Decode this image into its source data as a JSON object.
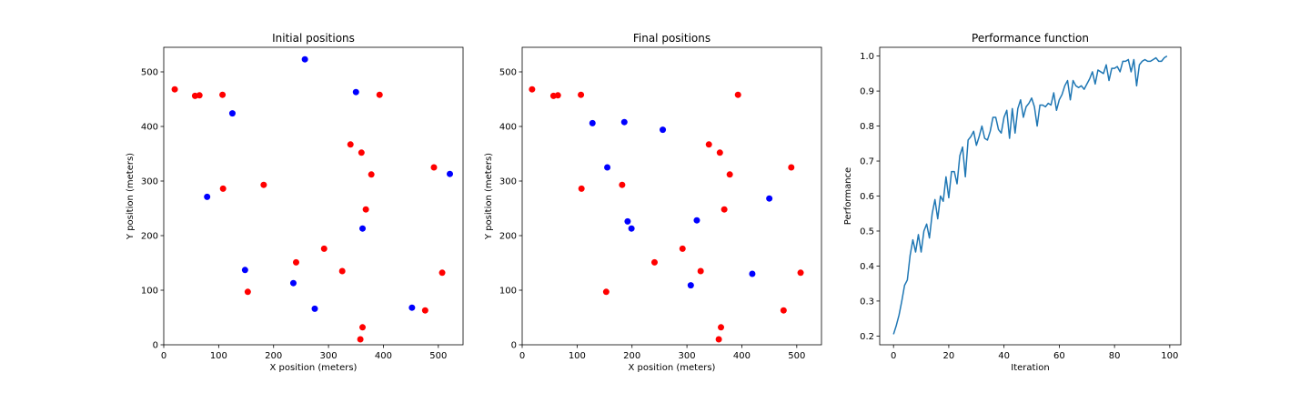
{
  "chart_data": [
    {
      "type": "scatter",
      "title": "Initial positions",
      "xlabel": "X position (meters)",
      "ylabel": "Y position (meters)",
      "xlim": [
        0,
        545
      ],
      "ylim": [
        0,
        545
      ],
      "xticks": [
        0,
        100,
        200,
        300,
        400,
        500
      ],
      "yticks": [
        0,
        100,
        200,
        300,
        400,
        500
      ],
      "grid": false,
      "series": [
        {
          "color": "#ff0000",
          "points": [
            [
              20,
              468
            ],
            [
              57,
              456
            ],
            [
              65,
              457
            ],
            [
              107,
              458
            ],
            [
              108,
              286
            ],
            [
              182,
              293
            ],
            [
              153,
              97
            ],
            [
              241,
              151
            ],
            [
              292,
              176
            ],
            [
              325,
              135
            ],
            [
              340,
              367
            ],
            [
              360,
              352
            ],
            [
              368,
              248
            ],
            [
              378,
              312
            ],
            [
              393,
              458
            ],
            [
              492,
              325
            ],
            [
              507,
              132
            ],
            [
              476,
              63
            ],
            [
              362,
              32
            ],
            [
              358,
              10
            ]
          ]
        },
        {
          "color": "#0000ff",
          "points": [
            [
              257,
              523
            ],
            [
              350,
              463
            ],
            [
              125,
              424
            ],
            [
              79,
              271
            ],
            [
              148,
              137
            ],
            [
              236,
              113
            ],
            [
              275,
              66
            ],
            [
              362,
              213
            ],
            [
              521,
              313
            ],
            [
              452,
              68
            ]
          ]
        }
      ]
    },
    {
      "type": "scatter",
      "title": "Final positions",
      "xlabel": "X position (meters)",
      "ylabel": "Y position (meters)",
      "xlim": [
        0,
        545
      ],
      "ylim": [
        0,
        545
      ],
      "xticks": [
        0,
        100,
        200,
        300,
        400,
        500
      ],
      "yticks": [
        0,
        100,
        200,
        300,
        400,
        500
      ],
      "grid": false,
      "series": [
        {
          "color": "#ff0000",
          "points": [
            [
              18,
              468
            ],
            [
              57,
              456
            ],
            [
              65,
              457
            ],
            [
              107,
              458
            ],
            [
              108,
              286
            ],
            [
              182,
              293
            ],
            [
              153,
              97
            ],
            [
              241,
              151
            ],
            [
              292,
              176
            ],
            [
              325,
              135
            ],
            [
              340,
              367
            ],
            [
              360,
              352
            ],
            [
              368,
              248
            ],
            [
              378,
              312
            ],
            [
              393,
              458
            ],
            [
              490,
              325
            ],
            [
              507,
              132
            ],
            [
              476,
              63
            ],
            [
              362,
              32
            ],
            [
              358,
              10
            ]
          ]
        },
        {
          "color": "#0000ff",
          "points": [
            [
              128,
              406
            ],
            [
              186,
              408
            ],
            [
              256,
              394
            ],
            [
              155,
              325
            ],
            [
              192,
              226
            ],
            [
              199,
              213
            ],
            [
              318,
              228
            ],
            [
              307,
              109
            ],
            [
              419,
              130
            ],
            [
              450,
              268
            ]
          ]
        }
      ]
    },
    {
      "type": "line",
      "title": "Performance function",
      "xlabel": "Iteration",
      "ylabel": "Performance",
      "xlim": [
        -5,
        104
      ],
      "ylim": [
        0.175,
        1.025
      ],
      "xticks": [
        0,
        20,
        40,
        60,
        80,
        100
      ],
      "yticks": [
        0.2,
        0.3,
        0.4,
        0.5,
        0.6,
        0.7,
        0.8,
        0.9,
        1.0
      ],
      "grid": false,
      "series": [
        {
          "color": "#1f77b4",
          "x": [
            0,
            1,
            2,
            3,
            4,
            5,
            6,
            7,
            8,
            9,
            10,
            11,
            12,
            13,
            14,
            15,
            16,
            17,
            18,
            19,
            20,
            21,
            22,
            23,
            24,
            25,
            26,
            27,
            28,
            29,
            30,
            31,
            32,
            33,
            34,
            35,
            36,
            37,
            38,
            39,
            40,
            41,
            42,
            43,
            44,
            45,
            46,
            47,
            48,
            49,
            50,
            51,
            52,
            53,
            54,
            55,
            56,
            57,
            58,
            59,
            60,
            61,
            62,
            63,
            64,
            65,
            66,
            67,
            68,
            69,
            70,
            71,
            72,
            73,
            74,
            75,
            76,
            77,
            78,
            79,
            80,
            81,
            82,
            83,
            84,
            85,
            86,
            87,
            88,
            89,
            90,
            91,
            92,
            93,
            94,
            95,
            96,
            97,
            98,
            99
          ],
          "values": [
            0.205,
            0.23,
            0.26,
            0.3,
            0.345,
            0.36,
            0.43,
            0.475,
            0.44,
            0.49,
            0.44,
            0.5,
            0.52,
            0.48,
            0.55,
            0.59,
            0.535,
            0.6,
            0.585,
            0.655,
            0.595,
            0.67,
            0.67,
            0.635,
            0.715,
            0.74,
            0.655,
            0.76,
            0.77,
            0.785,
            0.745,
            0.77,
            0.8,
            0.765,
            0.76,
            0.785,
            0.825,
            0.825,
            0.79,
            0.78,
            0.825,
            0.845,
            0.765,
            0.85,
            0.78,
            0.85,
            0.875,
            0.825,
            0.855,
            0.865,
            0.88,
            0.855,
            0.8,
            0.86,
            0.86,
            0.855,
            0.865,
            0.86,
            0.895,
            0.845,
            0.875,
            0.89,
            0.915,
            0.93,
            0.875,
            0.93,
            0.915,
            0.91,
            0.915,
            0.905,
            0.92,
            0.935,
            0.955,
            0.92,
            0.96,
            0.955,
            0.95,
            0.975,
            0.93,
            0.965,
            0.965,
            0.97,
            0.955,
            0.985,
            0.985,
            0.99,
            0.955,
            0.99,
            0.915,
            0.975,
            0.985,
            0.99,
            0.985,
            0.985,
            0.99,
            0.995,
            0.985,
            0.985,
            0.995,
            1.0
          ]
        }
      ]
    }
  ]
}
